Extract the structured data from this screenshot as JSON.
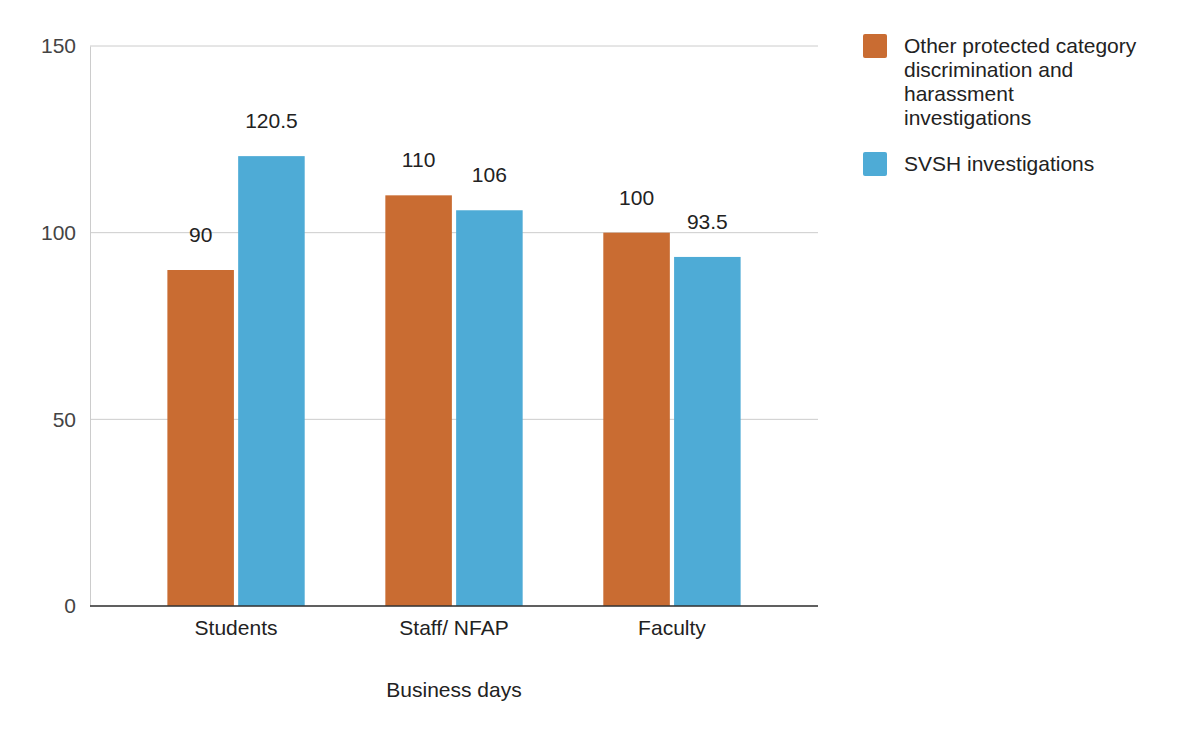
{
  "chart_data": {
    "type": "bar",
    "x_label": "Business days",
    "categories": [
      "Students",
      "Staff/ NFAP",
      "Faculty"
    ],
    "series": [
      {
        "name": "Other protected category discrimination and harassment investigations",
        "color": "#c96c32",
        "values": [
          90,
          110,
          100
        ]
      },
      {
        "name": "SVSH investigations",
        "color": "#4eabd6",
        "values": [
          120.5,
          106,
          93.5
        ]
      }
    ],
    "ylim": [
      0,
      150
    ],
    "yticks": [
      0,
      50,
      100,
      150
    ],
    "grid": true,
    "legend": "right",
    "data_labels": true
  }
}
